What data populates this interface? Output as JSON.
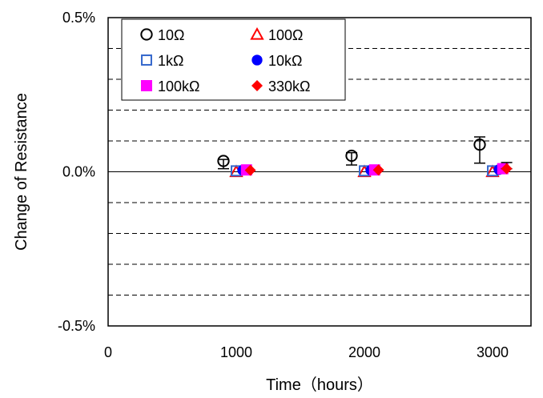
{
  "chart_data": {
    "type": "scatter",
    "xlabel": "Time（hours）",
    "ylabel": "Change of Resistance",
    "xlim": [
      0,
      3300
    ],
    "ylim": [
      -0.5,
      0.5
    ],
    "x_ticks": [
      0,
      1000,
      2000,
      3000
    ],
    "x_tick_labels": [
      "0",
      "1000",
      "2000",
      "3000"
    ],
    "y_ticks": [
      -0.5,
      0.0,
      0.5
    ],
    "y_tick_labels": [
      "-0.5%",
      "0.0%",
      "0.5%"
    ],
    "y_gridlines": [
      -0.4,
      -0.3,
      -0.2,
      -0.1,
      0.1,
      0.2,
      0.3,
      0.4
    ],
    "grid": "horizontal dashed",
    "legend_placement": "top-left",
    "series": [
      {
        "name": "10Ω",
        "marker": "circle-open",
        "color": "#000000",
        "points": [
          {
            "x": 900,
            "y": 0.035,
            "err_low": 0.025,
            "err_high": 0.005
          },
          {
            "x": 1900,
            "y": 0.052,
            "err_low": 0.03,
            "err_high": 0.01
          },
          {
            "x": 2900,
            "y": 0.088,
            "err_low": 0.06,
            "err_high": 0.025
          }
        ]
      },
      {
        "name": "100Ω",
        "marker": "triangle-open",
        "color": "#ff0000",
        "points": [
          {
            "x": 1000,
            "y": 0.0
          },
          {
            "x": 2000,
            "y": 0.0
          },
          {
            "x": 3000,
            "y": 0.0
          }
        ]
      },
      {
        "name": "1kΩ",
        "marker": "square-open",
        "color": "#3366cc",
        "points": [
          {
            "x": 1000,
            "y": 0.003
          },
          {
            "x": 2000,
            "y": 0.003
          },
          {
            "x": 3000,
            "y": 0.003
          }
        ]
      },
      {
        "name": "10kΩ",
        "marker": "circle-filled",
        "color": "#0000ff",
        "points": [
          {
            "x": 1050,
            "y": 0.005
          },
          {
            "x": 2050,
            "y": 0.005
          },
          {
            "x": 3050,
            "y": 0.007
          }
        ]
      },
      {
        "name": "100kΩ",
        "marker": "square-filled",
        "color": "#ff00ff",
        "points": [
          {
            "x": 1080,
            "y": 0.006
          },
          {
            "x": 2080,
            "y": 0.006
          },
          {
            "x": 3080,
            "y": 0.01
          }
        ]
      },
      {
        "name": "330kΩ",
        "marker": "diamond-filled",
        "color": "#ff0000",
        "points": [
          {
            "x": 1110,
            "y": 0.005
          },
          {
            "x": 2110,
            "y": 0.006
          },
          {
            "x": 3110,
            "y": 0.01,
            "err_low": 0.0,
            "err_high": 0.02
          }
        ]
      }
    ]
  }
}
